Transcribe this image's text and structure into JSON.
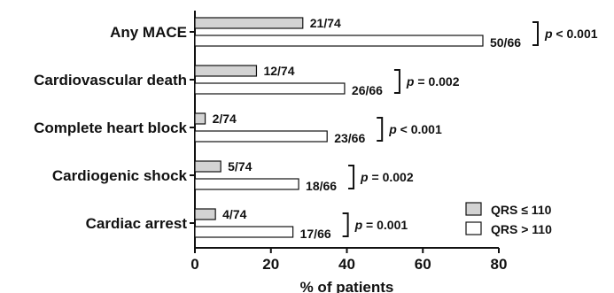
{
  "chart_data": {
    "type": "bar",
    "orientation": "horizontal",
    "categories": [
      "Any MACE",
      "Cardiovascular death",
      "Complete heart block",
      "Cardiogenic shock",
      "Cardiac arrest"
    ],
    "series": [
      {
        "name": "QRS ≤ 110",
        "color": "#d3d3d3",
        "values": [
          28.4,
          16.2,
          2.7,
          6.8,
          5.4
        ],
        "labels": [
          "21/74",
          "12/74",
          "2/74",
          "5/74",
          "4/74"
        ]
      },
      {
        "name": "QRS > 110",
        "color": "#ffffff",
        "values": [
          75.8,
          39.4,
          34.8,
          27.3,
          25.8
        ],
        "labels": [
          "50/66",
          "26/66",
          "23/66",
          "18/66",
          "17/66"
        ]
      }
    ],
    "p_values": [
      "p < 0.001",
      "p = 0.002",
      "p < 0.001",
      "p = 0.002",
      "p = 0.001"
    ],
    "xlabel": "% of patients",
    "ylabel": "",
    "xlim": [
      0,
      80
    ],
    "xticks": [
      0,
      20,
      40,
      60,
      80
    ],
    "grid": false,
    "legend_position": "bottom-right"
  }
}
